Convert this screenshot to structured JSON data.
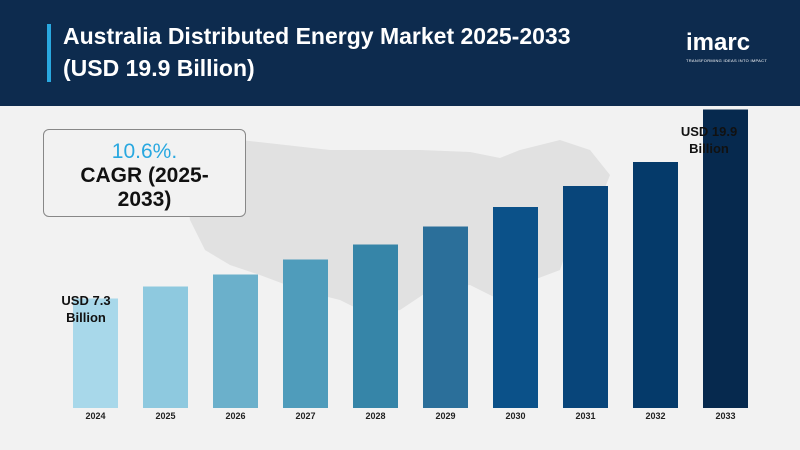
{
  "header": {
    "title_line1": "Australia Distributed Energy Market 2025-2033",
    "title_line2": "(USD 19.9 Billion)",
    "logo_text": "imarc",
    "logo_tagline": "TRANSFORMING IDEAS INTO IMPACT"
  },
  "cagr": {
    "value": "10.6%.",
    "label_line1": "CAGR (2025-",
    "label_line2": "2033)"
  },
  "annotations": {
    "start_line1": "USD 7.3",
    "start_line2": "Billion",
    "end_line1": "USD 19.9",
    "end_line2": "Billion"
  },
  "colors": {
    "header_bg": "#0d2b4e",
    "accent": "#29a8e0",
    "bars": [
      "#a8d8ea",
      "#8ec9df",
      "#6bb0cb",
      "#4f9cbb",
      "#3685a8",
      "#2b6f9a",
      "#0b5189",
      "#08457a",
      "#053a6a",
      "#06294e"
    ]
  },
  "chart_data": {
    "type": "bar",
    "categories": [
      "2024",
      "2025",
      "2026",
      "2027",
      "2028",
      "2029",
      "2030",
      "2031",
      "2032",
      "2033"
    ],
    "values": [
      7.3,
      8.1,
      8.9,
      9.9,
      10.9,
      12.1,
      13.4,
      14.8,
      16.4,
      19.9
    ],
    "title": "Australia Distributed Energy Market 2025-2033",
    "xlabel": "",
    "ylabel": "",
    "ylim": [
      0,
      20
    ],
    "grid": false
  }
}
